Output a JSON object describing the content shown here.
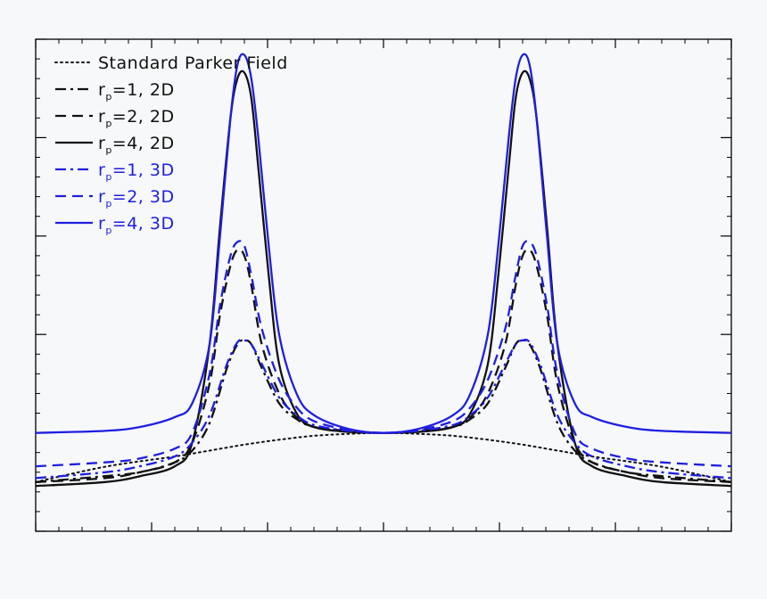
{
  "chart_data": {
    "type": "line",
    "title": "",
    "xlabel": "",
    "ylabel": "",
    "xlim": [
      -1,
      1
    ],
    "ylim": [
      -0.25,
      2.25
    ],
    "grid": false,
    "legend_placement": "top-left",
    "colors": {
      "black": "#111111",
      "blue": "#1f1fe0",
      "frame": "#000000"
    },
    "series": [
      {
        "name": "Standard Parker Field",
        "label_main": "Standard Parker Field",
        "label_sub": "",
        "label_rest": "",
        "color": "#111111",
        "dash": "dotted",
        "x": [
          -1,
          -0.8,
          -0.6,
          -0.5,
          -0.4,
          -0.3,
          -0.2,
          -0.1,
          0,
          0.1,
          0.2,
          0.3,
          0.4,
          0.5,
          0.6,
          0.8,
          1
        ],
        "y": [
          0.0,
          0.078,
          0.13,
          0.16,
          0.19,
          0.215,
          0.235,
          0.245,
          0.25,
          0.245,
          0.235,
          0.215,
          0.19,
          0.16,
          0.13,
          0.078,
          0.0
        ]
      },
      {
        "name": "rp=1, 2D",
        "label_main": "r",
        "label_sub": "p",
        "label_rest": "=1, 2D",
        "color": "#111111",
        "dash": "dashdot",
        "x": [
          -1,
          -0.8,
          -0.7,
          -0.6,
          -0.55,
          -0.5,
          -0.45,
          -0.42,
          -0.4,
          -0.38,
          -0.35,
          -0.3,
          -0.25,
          -0.2,
          -0.1,
          0,
          0.1,
          0.2,
          0.25,
          0.3,
          0.35,
          0.38,
          0.4,
          0.42,
          0.45,
          0.5,
          0.55,
          0.6,
          0.7,
          0.8,
          1
        ],
        "y": [
          0.0,
          0.03,
          0.05,
          0.1,
          0.16,
          0.3,
          0.58,
          0.7,
          0.72,
          0.7,
          0.58,
          0.4,
          0.32,
          0.28,
          0.26,
          0.25,
          0.26,
          0.28,
          0.32,
          0.4,
          0.58,
          0.7,
          0.72,
          0.7,
          0.58,
          0.3,
          0.16,
          0.1,
          0.05,
          0.03,
          0.0
        ]
      },
      {
        "name": "rp=2, 2D",
        "label_main": "r",
        "label_sub": "p",
        "label_rest": "=2, 2D",
        "color": "#111111",
        "dash": "dashed",
        "x": [
          -1,
          -0.8,
          -0.7,
          -0.6,
          -0.55,
          -0.5,
          -0.47,
          -0.44,
          -0.42,
          -0.4,
          -0.38,
          -0.35,
          -0.3,
          -0.25,
          -0.2,
          -0.1,
          0,
          0.1,
          0.2,
          0.25,
          0.3,
          0.35,
          0.38,
          0.4,
          0.42,
          0.44,
          0.47,
          0.5,
          0.55,
          0.6,
          0.7,
          0.8,
          1
        ],
        "y": [
          0.0,
          0.02,
          0.05,
          0.1,
          0.2,
          0.5,
          0.85,
          1.1,
          1.18,
          1.15,
          1.0,
          0.7,
          0.45,
          0.33,
          0.28,
          0.255,
          0.25,
          0.255,
          0.28,
          0.33,
          0.45,
          0.7,
          1.0,
          1.15,
          1.18,
          1.1,
          0.85,
          0.5,
          0.2,
          0.1,
          0.05,
          0.02,
          0.0
        ]
      },
      {
        "name": "rp=4, 2D",
        "label_main": "r",
        "label_sub": "p",
        "label_rest": "=4, 2D",
        "color": "#111111",
        "dash": "solid",
        "x": [
          -1,
          -0.8,
          -0.7,
          -0.6,
          -0.55,
          -0.5,
          -0.47,
          -0.44,
          -0.42,
          -0.4,
          -0.38,
          -0.36,
          -0.33,
          -0.3,
          -0.25,
          -0.2,
          -0.1,
          0,
          0.1,
          0.2,
          0.25,
          0.3,
          0.33,
          0.36,
          0.38,
          0.4,
          0.42,
          0.44,
          0.47,
          0.5,
          0.55,
          0.6,
          0.7,
          0.8,
          1
        ],
        "y": [
          -0.02,
          0.0,
          0.03,
          0.08,
          0.2,
          0.7,
          1.3,
          1.85,
          2.05,
          2.08,
          1.95,
          1.6,
          1.05,
          0.6,
          0.35,
          0.28,
          0.255,
          0.25,
          0.255,
          0.28,
          0.35,
          0.6,
          1.05,
          1.6,
          1.95,
          2.08,
          2.05,
          1.85,
          1.3,
          0.7,
          0.2,
          0.08,
          0.03,
          0.0,
          -0.02
        ]
      },
      {
        "name": "rp=1, 3D",
        "label_main": "r",
        "label_sub": "p",
        "label_rest": "=1, 3D",
        "color": "#1f1fe0",
        "dash": "dashdot",
        "x": [
          -1,
          -0.8,
          -0.7,
          -0.6,
          -0.55,
          -0.5,
          -0.45,
          -0.42,
          -0.4,
          -0.38,
          -0.35,
          -0.3,
          -0.25,
          -0.2,
          -0.1,
          0,
          0.1,
          0.2,
          0.25,
          0.3,
          0.35,
          0.38,
          0.4,
          0.42,
          0.45,
          0.5,
          0.55,
          0.6,
          0.7,
          0.8,
          1
        ],
        "y": [
          0.02,
          0.05,
          0.08,
          0.13,
          0.2,
          0.34,
          0.6,
          0.71,
          0.72,
          0.7,
          0.6,
          0.43,
          0.34,
          0.29,
          0.26,
          0.25,
          0.26,
          0.29,
          0.34,
          0.43,
          0.6,
          0.7,
          0.72,
          0.71,
          0.6,
          0.34,
          0.2,
          0.13,
          0.08,
          0.05,
          0.02
        ]
      },
      {
        "name": "rp=2, 3D",
        "label_main": "r",
        "label_sub": "p",
        "label_rest": "=2, 3D",
        "color": "#1f1fe0",
        "dash": "dashed",
        "x": [
          -1,
          -0.8,
          -0.7,
          -0.6,
          -0.55,
          -0.5,
          -0.47,
          -0.44,
          -0.42,
          -0.4,
          -0.38,
          -0.35,
          -0.3,
          -0.25,
          -0.2,
          -0.1,
          0,
          0.1,
          0.2,
          0.25,
          0.3,
          0.35,
          0.38,
          0.4,
          0.42,
          0.44,
          0.47,
          0.5,
          0.55,
          0.6,
          0.7,
          0.8,
          1
        ],
        "y": [
          0.08,
          0.1,
          0.12,
          0.17,
          0.25,
          0.55,
          0.9,
          1.15,
          1.22,
          1.2,
          1.05,
          0.78,
          0.52,
          0.38,
          0.31,
          0.265,
          0.25,
          0.265,
          0.31,
          0.38,
          0.52,
          0.78,
          1.05,
          1.2,
          1.22,
          1.15,
          0.9,
          0.55,
          0.25,
          0.17,
          0.12,
          0.1,
          0.08
        ]
      },
      {
        "name": "rp=4, 3D",
        "label_main": "r",
        "label_sub": "p",
        "label_rest": "=4, 3D",
        "color": "#1f1fe0",
        "dash": "solid",
        "x": [
          -1,
          -0.8,
          -0.7,
          -0.6,
          -0.55,
          -0.5,
          -0.47,
          -0.44,
          -0.42,
          -0.4,
          -0.38,
          -0.36,
          -0.33,
          -0.3,
          -0.25,
          -0.2,
          -0.1,
          0,
          0.1,
          0.2,
          0.25,
          0.3,
          0.33,
          0.36,
          0.38,
          0.4,
          0.42,
          0.44,
          0.47,
          0.5,
          0.55,
          0.6,
          0.7,
          0.8,
          1
        ],
        "y": [
          0.25,
          0.26,
          0.28,
          0.33,
          0.4,
          0.7,
          1.25,
          1.85,
          2.12,
          2.17,
          2.05,
          1.75,
          1.2,
          0.75,
          0.45,
          0.34,
          0.27,
          0.25,
          0.27,
          0.34,
          0.45,
          0.75,
          1.2,
          1.75,
          2.05,
          2.17,
          2.12,
          1.85,
          1.25,
          0.7,
          0.4,
          0.33,
          0.28,
          0.26,
          0.25
        ]
      }
    ]
  }
}
